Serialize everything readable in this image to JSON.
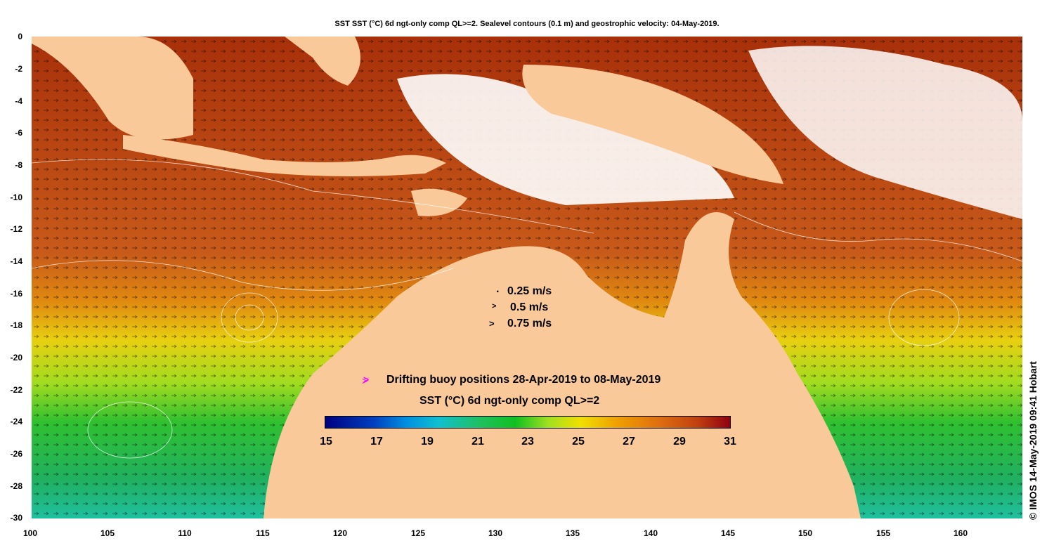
{
  "title": "SST SST (°C) 6d ngt-only comp QL>=2. Sealevel contours (0.1 m) and geostrophic velocity: 04-May-2019.",
  "y_axis": {
    "ticks": [
      "0",
      "-2",
      "-4",
      "-6",
      "-8",
      "-10",
      "-12",
      "-14",
      "-16",
      "-18",
      "-20",
      "-22",
      "-24",
      "-26",
      "-28",
      "-30"
    ]
  },
  "x_axis": {
    "ticks": [
      "100",
      "105",
      "110",
      "115",
      "120",
      "125",
      "130",
      "135",
      "140",
      "145",
      "150",
      "155",
      "160"
    ]
  },
  "velocity_legend": [
    {
      "label": "0.25 m/s"
    },
    {
      "label": "0.5 m/s"
    },
    {
      "label": "0.75 m/s"
    }
  ],
  "buoy_legend": {
    "label": "Drifting buoy positions 28-Apr-2019 to 08-May-2019",
    "symbol_color": "#ff00ff"
  },
  "colorbar": {
    "title": "SST (°C) 6d ngt-only comp QL>=2",
    "min": 15,
    "max": 31,
    "tick_labels": [
      "15",
      "17",
      "19",
      "21",
      "23",
      "25",
      "27",
      "29",
      "31"
    ]
  },
  "copyright": "© IMOS 14-May-2019 09:41 Hobart",
  "colors": {
    "land": "#f9c99a",
    "warm": "#c8501a",
    "cool": "#1cc040",
    "cloud": "#ffffff"
  }
}
